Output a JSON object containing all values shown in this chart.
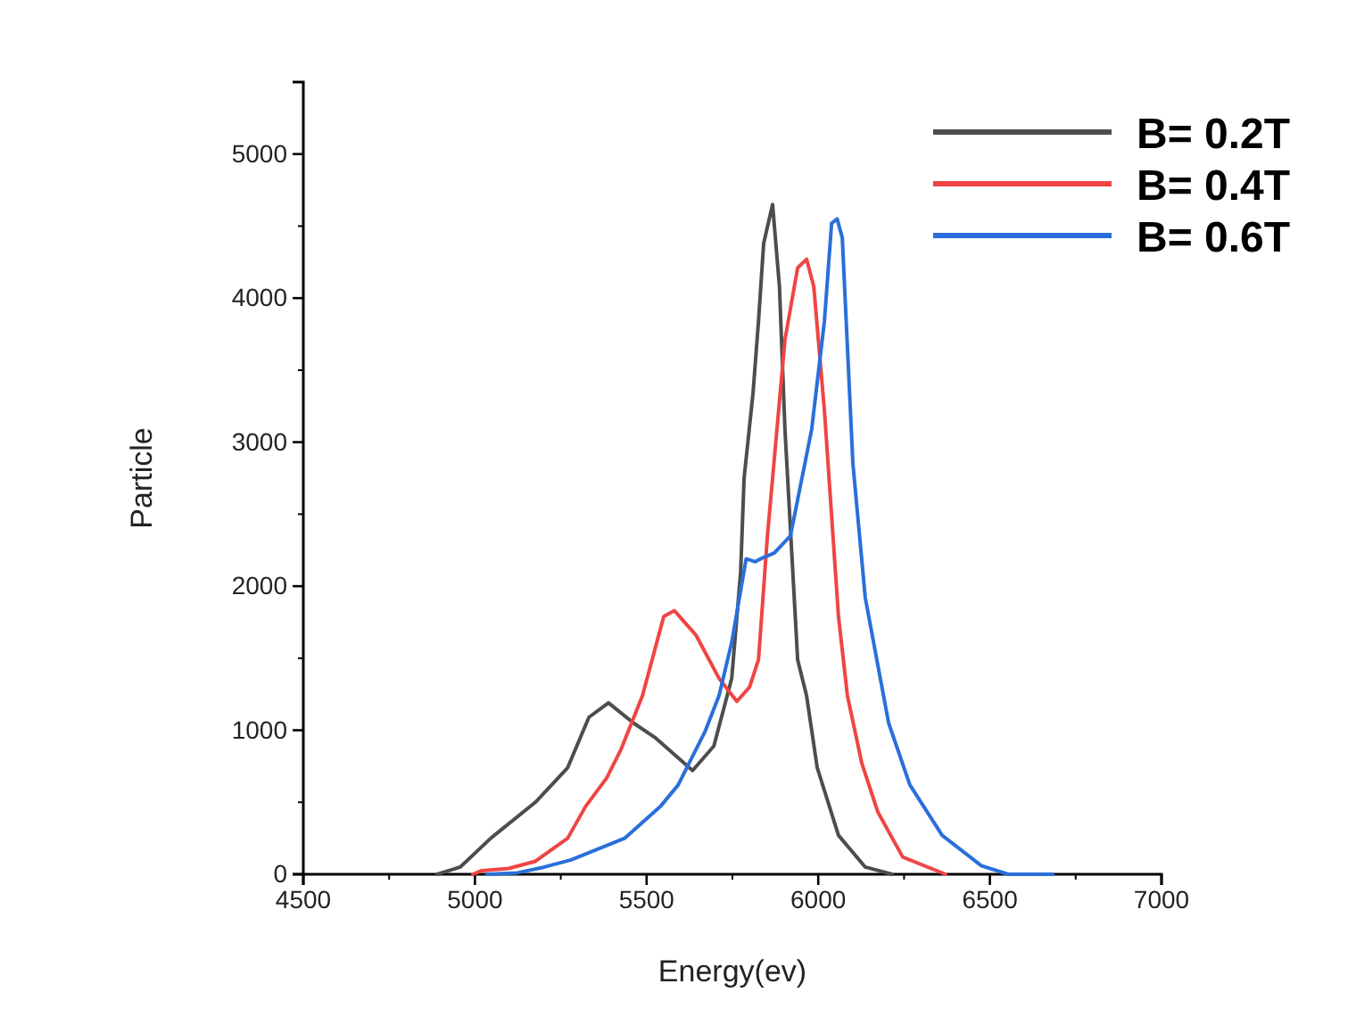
{
  "chart_data": {
    "type": "line",
    "xlabel": "Energy(ev)",
    "ylabel": "Particle",
    "xlim": [
      4500,
      7000
    ],
    "xticks": [
      4500,
      5000,
      5500,
      6000,
      6500,
      7000
    ],
    "ylim": [
      0,
      5500
    ],
    "yticks": [
      0,
      1000,
      2000,
      3000,
      4000,
      5000
    ],
    "grid": false,
    "legend": "top right",
    "marker": "none",
    "line_style": "solid",
    "series": [
      {
        "name": "B= 0.2T",
        "color": "#4d4d4d",
        "x": [
          4890,
          4957,
          5046,
          5176,
          5270,
          5332,
          5389,
          5462,
          5524,
          5634,
          5696,
          5748,
          5774,
          5784,
          5810,
          5826,
          5841,
          5867,
          5887,
          5903,
          5940,
          5966,
          5997,
          6059,
          6137,
          6215
        ],
        "values": [
          0,
          50,
          250,
          500,
          740,
          1090,
          1190,
          1050,
          950,
          720,
          890,
          1360,
          2100,
          2750,
          3340,
          3840,
          4380,
          4650,
          4080,
          3090,
          1490,
          1240,
          740,
          270,
          50,
          0
        ]
      },
      {
        "name": "B= 0.4T",
        "color": "#f04444",
        "x": [
          4994,
          5020,
          5098,
          5176,
          5270,
          5322,
          5384,
          5426,
          5488,
          5550,
          5581,
          5644,
          5711,
          5763,
          5800,
          5826,
          5852,
          5903,
          5940,
          5966,
          5987,
          6018,
          6059,
          6085,
          6127,
          6174,
          6246,
          6371
        ],
        "values": [
          0,
          25,
          40,
          90,
          250,
          470,
          670,
          870,
          1240,
          1790,
          1830,
          1660,
          1360,
          1200,
          1300,
          1490,
          2350,
          3710,
          4210,
          4270,
          4080,
          3220,
          1790,
          1240,
          770,
          430,
          120,
          0
        ]
      },
      {
        "name": "B= 0.6T",
        "color": "#2a6fdb",
        "x": [
          5035,
          5124,
          5202,
          5280,
          5436,
          5540,
          5592,
          5670,
          5711,
          5748,
          5790,
          5816,
          5841,
          5872,
          5919,
          5981,
          6018,
          6039,
          6055,
          6070,
          6101,
          6137,
          6205,
          6267,
          6361,
          6475,
          6553,
          6683
        ],
        "values": [
          0,
          10,
          50,
          100,
          250,
          470,
          620,
          990,
          1240,
          1610,
          2190,
          2170,
          2200,
          2230,
          2350,
          3090,
          3840,
          4520,
          4550,
          4420,
          2850,
          1920,
          1050,
          620,
          270,
          60,
          0,
          0
        ]
      }
    ]
  }
}
